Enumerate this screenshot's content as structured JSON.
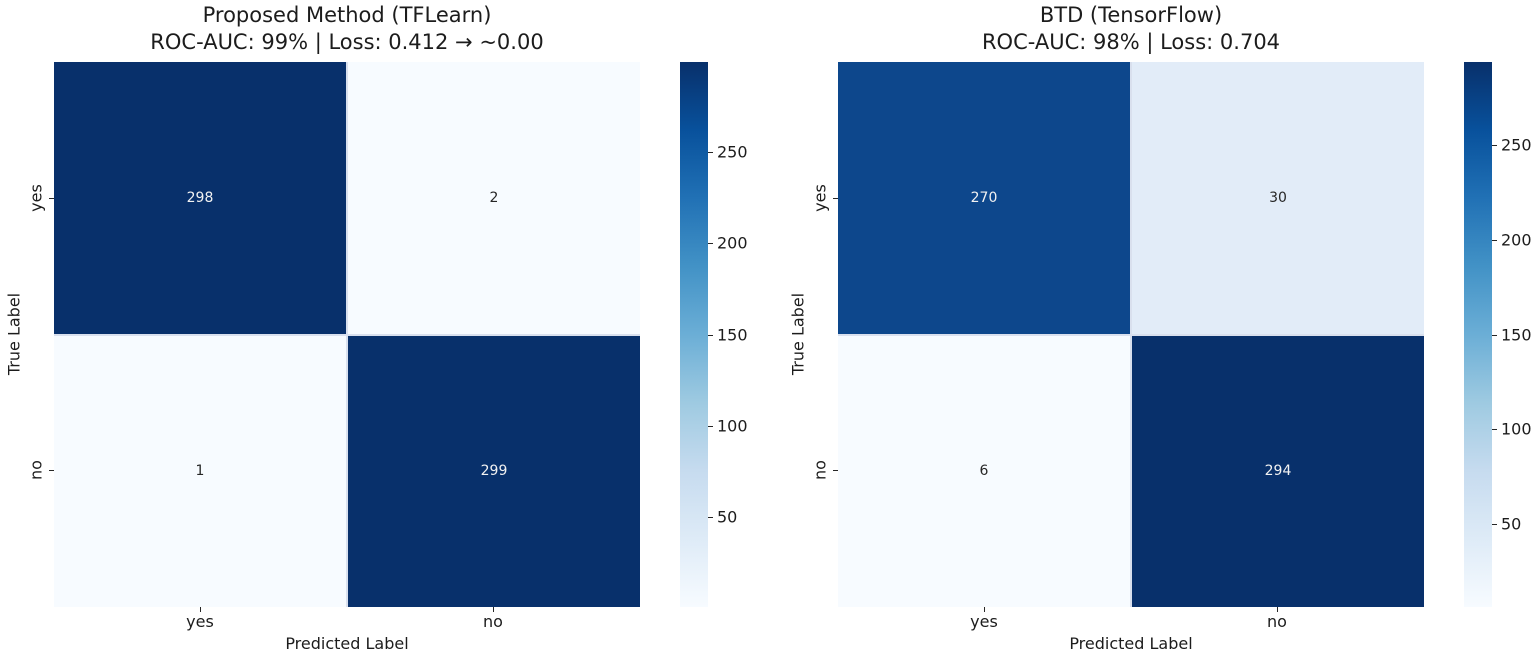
{
  "figure": {
    "background": "#ffffff",
    "text_color": "#1c1c1c"
  },
  "chart_data": [
    {
      "type": "heatmap",
      "title": "Proposed Method (TFLearn)",
      "subtitle": "ROC-AUC: 99% | Loss: 0.412 → ~0.00",
      "xlabel": "Predicted Label",
      "ylabel": "True Label",
      "x_categories": [
        "yes",
        "no"
      ],
      "y_categories": [
        "yes",
        "no"
      ],
      "values": [
        [
          298,
          2
        ],
        [
          1,
          299
        ]
      ],
      "colormap": "Blues",
      "color_range": [
        1,
        299
      ],
      "colorbar_ticks": [
        50,
        100,
        150,
        200,
        250
      ],
      "legend_position": "right-colorbar",
      "grid": false,
      "cell_colors": [
        [
          "#08306b",
          "#f7fbff"
        ],
        [
          "#f7fbff",
          "#08306b"
        ]
      ],
      "cell_text_colors": [
        [
          "#f2f2f2",
          "#262626"
        ],
        [
          "#262626",
          "#f2f2f2"
        ]
      ]
    },
    {
      "type": "heatmap",
      "title": "BTD (TensorFlow)",
      "subtitle": "ROC-AUC: 98% | Loss: 0.704",
      "xlabel": "Predicted Label",
      "ylabel": "True Label",
      "x_categories": [
        "yes",
        "no"
      ],
      "y_categories": [
        "yes",
        "no"
      ],
      "values": [
        [
          270,
          30
        ],
        [
          6,
          294
        ]
      ],
      "colormap": "Blues",
      "color_range": [
        6,
        294
      ],
      "colorbar_ticks": [
        50,
        100,
        150,
        200,
        250
      ],
      "legend_position": "right-colorbar",
      "grid": false,
      "cell_colors": [
        [
          "#0d478c",
          "#e2ecf8"
        ],
        [
          "#f7fbff",
          "#08306b"
        ]
      ],
      "cell_text_colors": [
        [
          "#f2f2f2",
          "#262626"
        ],
        [
          "#262626",
          "#f2f2f2"
        ]
      ]
    }
  ]
}
